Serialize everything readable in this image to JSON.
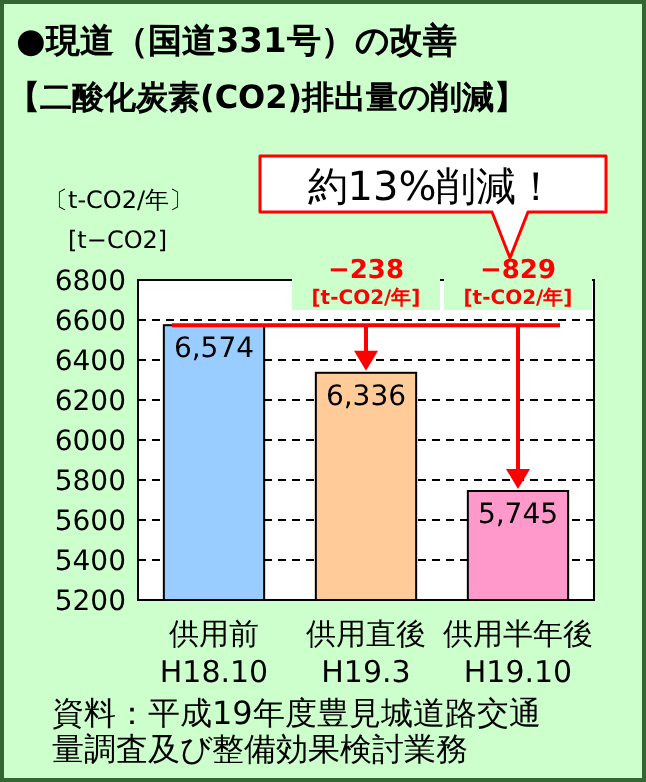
{
  "chart_data": {
    "type": "bar",
    "title": "●現道（国道331号）の改善",
    "subtitle": "【二酸化炭素(CO2)排出量の削減】",
    "ylabel": "[t−CO2]",
    "categories": [
      "供用前\nH18.10",
      "供用直後\nH19.3",
      "供用半年後\nH19.10"
    ],
    "values": [
      6574,
      6336,
      5745
    ],
    "colors": [
      "#99ccff",
      "#ffcc99",
      "#ff99cc"
    ],
    "value_labels": [
      "6,574",
      "6,336",
      "5,745"
    ],
    "ylim": [
      5200,
      6800
    ],
    "yticks": [
      5200,
      5400,
      5600,
      5800,
      6000,
      6200,
      6400,
      6600,
      6800
    ],
    "grid": "y",
    "ref_lines": [
      {
        "axis": "y",
        "value": 6574,
        "color": "#ff0000"
      }
    ],
    "annotations": [
      "〔t-CO2/年〕",
      "約13%削減！",
      {
        "text": "−238\n[t-CO2/年]",
        "x": "供用直後\nH19.3",
        "y": 6336
      },
      {
        "text": "−829\n[t-CO2/年]",
        "x": "供用半年後\nH19.10",
        "y": 5745
      },
      "資料：平成19年度豊見城道路交通量調査及び整備効果検討業務"
    ]
  }
}
